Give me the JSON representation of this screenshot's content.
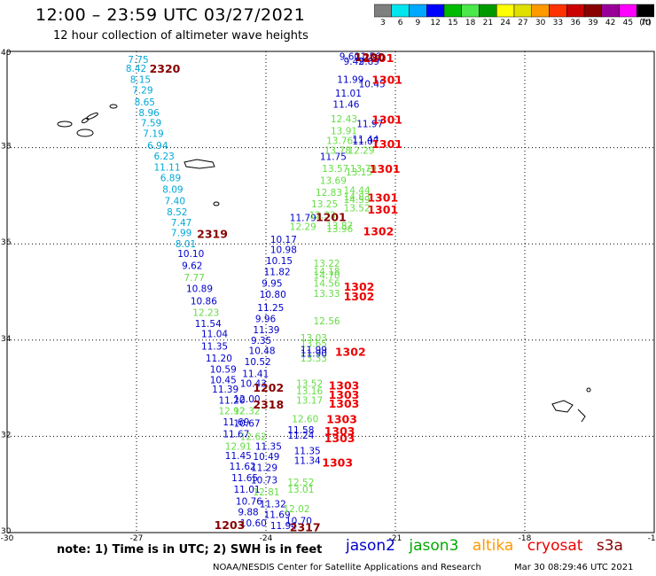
{
  "header": {
    "title": "12:00 – 23:59 UTC 03/27/2021",
    "subtitle": "12 hour collection of altimeter wave heights"
  },
  "color_scale": {
    "unit_label": "(ft)",
    "ticks": [
      "3",
      "6",
      "9",
      "12",
      "15",
      "18",
      "21",
      "24",
      "27",
      "30",
      "33",
      "36",
      "39",
      "42",
      "45",
      "70"
    ],
    "colors": [
      "#7f7f7f",
      "#00e5ee",
      "#00a8ff",
      "#0000ff",
      "#00bb00",
      "#4be84b",
      "#009900",
      "#ffff00",
      "#e0e000",
      "#ff9900",
      "#ff3300",
      "#cc0000",
      "#880000",
      "#990099",
      "#ff00ff",
      "#000000"
    ]
  },
  "axes": {
    "lat_labels": [
      "40",
      "38",
      "36",
      "34",
      "32",
      "30"
    ],
    "lon_labels": [
      "-30",
      "-27",
      "-24",
      "-21",
      "-18",
      "-15"
    ]
  },
  "footer": {
    "note": "note:  1) Time is in UTC;  2) SWH is in feet",
    "credit_org": "NOAA/NESDIS Center for Satellite Applications and Research",
    "credit_time": "Mar 30 08:29:46 UTC 2021"
  },
  "legend": [
    {
      "name": "jason2",
      "color": "#0000cc"
    },
    {
      "name": "jason3",
      "color": "#00aa00"
    },
    {
      "name": "altika",
      "color": "#ff9900"
    },
    {
      "name": "cryosat",
      "color": "#ee0000"
    },
    {
      "name": "s3a",
      "color": "#880000"
    }
  ],
  "track_colors": {
    "cyan": "#00a8d8",
    "blue": "#0000cc",
    "green": "#66dd44",
    "red": "#ee0000",
    "dkred": "#880000"
  },
  "tracks": {
    "track_a": {
      "color": "cyan",
      "points": [
        {
          "lat": 39.83,
          "lon": -27.2,
          "v": "7.75"
        },
        {
          "lat": 39.65,
          "lon": -27.25,
          "v": "8.42"
        },
        {
          "lat": 39.42,
          "lon": -27.15,
          "v": "8.15"
        },
        {
          "lat": 39.2,
          "lon": -27.1,
          "v": "7.29"
        },
        {
          "lat": 38.95,
          "lon": -27.05,
          "v": "8.65"
        },
        {
          "lat": 38.73,
          "lon": -26.95,
          "v": "8.96"
        },
        {
          "lat": 38.52,
          "lon": -26.9,
          "v": "7.59"
        },
        {
          "lat": 38.3,
          "lon": -26.85,
          "v": "7.19"
        },
        {
          "lat": 38.05,
          "lon": -26.75,
          "v": "6.94"
        },
        {
          "lat": 37.83,
          "lon": -26.6,
          "v": "6.23"
        },
        {
          "lat": 37.6,
          "lon": -26.6,
          "v": "11.11"
        },
        {
          "lat": 37.38,
          "lon": -26.45,
          "v": "6.89"
        },
        {
          "lat": 37.14,
          "lon": -26.4,
          "v": "8.09"
        },
        {
          "lat": 36.9,
          "lon": -26.35,
          "v": "7.40"
        },
        {
          "lat": 36.67,
          "lon": -26.3,
          "v": "8.52"
        },
        {
          "lat": 36.45,
          "lon": -26.2,
          "v": "7.47"
        },
        {
          "lat": 36.23,
          "lon": -26.2,
          "v": "7.99"
        },
        {
          "lat": 36.0,
          "lon": -26.1,
          "v": "8.01"
        }
      ]
    },
    "track_b": {
      "color": "blue",
      "points": [
        {
          "lat": 35.8,
          "lon": -26.05,
          "v": "10.10"
        },
        {
          "lat": 35.55,
          "lon": -25.95,
          "v": "9.62"
        },
        {
          "lat": 35.07,
          "lon": -25.85,
          "v": "10.89"
        },
        {
          "lat": 34.82,
          "lon": -25.75,
          "v": "10.86"
        },
        {
          "lat": 34.35,
          "lon": -25.65,
          "v": "11.54"
        },
        {
          "lat": 34.13,
          "lon": -25.5,
          "v": "11.04"
        },
        {
          "lat": 33.88,
          "lon": -25.5,
          "v": "11.35"
        },
        {
          "lat": 33.63,
          "lon": -25.4,
          "v": "11.20"
        },
        {
          "lat": 33.4,
          "lon": -25.3,
          "v": "10.59"
        },
        {
          "lat": 33.18,
          "lon": -25.3,
          "v": "10.45"
        },
        {
          "lat": 32.98,
          "lon": -25.25,
          "v": "11.39"
        },
        {
          "lat": 32.75,
          "lon": -25.1,
          "v": "11.20"
        },
        {
          "lat": 32.3,
          "lon": -25.0,
          "v": "11.69"
        },
        {
          "lat": 32.05,
          "lon": -25.0,
          "v": "11.67"
        },
        {
          "lat": 31.6,
          "lon": -24.95,
          "v": "11.45"
        },
        {
          "lat": 31.38,
          "lon": -24.85,
          "v": "11.62"
        },
        {
          "lat": 31.14,
          "lon": -24.8,
          "v": "11.65"
        },
        {
          "lat": 30.9,
          "lon": -24.75,
          "v": "11.01"
        },
        {
          "lat": 30.65,
          "lon": -24.7,
          "v": "10.76"
        },
        {
          "lat": 30.43,
          "lon": -24.65,
          "v": "9.88"
        },
        {
          "lat": 30.2,
          "lon": -24.6,
          "v": "10.60"
        }
      ]
    },
    "track_b2": {
      "color": "green",
      "points": [
        {
          "lat": 35.3,
          "lon": -25.9,
          "v": "7.77"
        },
        {
          "lat": 34.58,
          "lon": -25.7,
          "v": "12.23"
        },
        {
          "lat": 32.53,
          "lon": -25.1,
          "v": "12.92"
        },
        {
          "lat": 31.8,
          "lon": -24.95,
          "v": "12.91"
        }
      ]
    },
    "track_c": {
      "color": "blue",
      "points": [
        {
          "lat": 36.1,
          "lon": -23.9,
          "v": "10.17"
        },
        {
          "lat": 35.88,
          "lon": -23.9,
          "v": "10.98"
        },
        {
          "lat": 35.65,
          "lon": -24.0,
          "v": "10.15"
        },
        {
          "lat": 35.42,
          "lon": -24.05,
          "v": "11.82"
        },
        {
          "lat": 35.18,
          "lon": -24.1,
          "v": "9.95"
        },
        {
          "lat": 34.95,
          "lon": -24.15,
          "v": "10.80"
        },
        {
          "lat": 34.68,
          "lon": -24.2,
          "v": "11.25"
        },
        {
          "lat": 34.45,
          "lon": -24.25,
          "v": "9.96"
        },
        {
          "lat": 34.22,
          "lon": -24.3,
          "v": "11.39"
        },
        {
          "lat": 34.0,
          "lon": -24.35,
          "v": "9.35"
        },
        {
          "lat": 33.78,
          "lon": -24.4,
          "v": "10.48"
        },
        {
          "lat": 33.55,
          "lon": -24.5,
          "v": "10.52"
        },
        {
          "lat": 33.31,
          "lon": -24.55,
          "v": "11.41"
        },
        {
          "lat": 33.1,
          "lon": -24.6,
          "v": "10.43"
        },
        {
          "lat": 32.78,
          "lon": -24.75,
          "v": "12.00"
        },
        {
          "lat": 32.27,
          "lon": -24.75,
          "v": "10.67"
        },
        {
          "lat": 31.8,
          "lon": -24.25,
          "v": "11.35"
        },
        {
          "lat": 31.58,
          "lon": -24.3,
          "v": "10.49"
        },
        {
          "lat": 31.35,
          "lon": -24.35,
          "v": "11.29"
        },
        {
          "lat": 31.1,
          "lon": -24.35,
          "v": "10.73"
        },
        {
          "lat": 30.6,
          "lon": -24.15,
          "v": "11.32"
        },
        {
          "lat": 30.38,
          "lon": -24.05,
          "v": "11.69"
        },
        {
          "lat": 30.15,
          "lon": -23.9,
          "v": "11.94"
        },
        {
          "lat": 30.25,
          "lon": -23.55,
          "v": "10.70"
        }
      ]
    },
    "track_c2": {
      "color": "green",
      "points": [
        {
          "lat": 32.53,
          "lon": -24.75,
          "v": "12.32"
        },
        {
          "lat": 32.0,
          "lon": -24.6,
          "v": "12.62"
        },
        {
          "lat": 30.85,
          "lon": -24.3,
          "v": "12.81"
        },
        {
          "lat": 30.5,
          "lon": -23.6,
          "v": "12.02"
        }
      ]
    },
    "track_d": {
      "color": "blue",
      "points": [
        {
          "lat": 39.9,
          "lon": -22.3,
          "v": "9.60"
        },
        {
          "lat": 39.9,
          "lon": -21.95,
          "v": "11.56"
        },
        {
          "lat": 39.8,
          "lon": -22.2,
          "v": "9.42"
        },
        {
          "lat": 39.8,
          "lon": -21.85,
          "v": "9.89"
        },
        {
          "lat": 39.42,
          "lon": -22.35,
          "v": "11.99"
        },
        {
          "lat": 39.33,
          "lon": -21.85,
          "v": "10.45"
        },
        {
          "lat": 39.13,
          "lon": -22.4,
          "v": "11.01"
        },
        {
          "lat": 38.9,
          "lon": -22.45,
          "v": "11.46"
        },
        {
          "lat": 38.5,
          "lon": -21.9,
          "v": "11.97"
        },
        {
          "lat": 38.18,
          "lon": -22.0,
          "v": "11.44"
        },
        {
          "lat": 38.14,
          "lon": -22.0,
          "v": "11.07"
        },
        {
          "lat": 37.82,
          "lon": -22.75,
          "v": "11.75"
        },
        {
          "lat": 36.55,
          "lon": -23.45,
          "v": "11.79"
        }
      ]
    },
    "track_d2": {
      "color": "green",
      "points": [
        {
          "lat": 38.6,
          "lon": -22.5,
          "v": "12.43"
        },
        {
          "lat": 38.35,
          "lon": -22.5,
          "v": "13.91"
        },
        {
          "lat": 38.15,
          "lon": -22.6,
          "v": "13.76"
        },
        {
          "lat": 37.95,
          "lon": -22.65,
          "v": "13.78"
        },
        {
          "lat": 37.95,
          "lon": -22.1,
          "v": "12.29"
        },
        {
          "lat": 37.57,
          "lon": -22.7,
          "v": "13.57"
        },
        {
          "lat": 37.57,
          "lon": -22.05,
          "v": "13.79"
        },
        {
          "lat": 37.5,
          "lon": -22.15,
          "v": "13.15"
        },
        {
          "lat": 37.32,
          "lon": -22.75,
          "v": "13.69"
        },
        {
          "lat": 37.12,
          "lon": -22.2,
          "v": "14.44"
        },
        {
          "lat": 37.07,
          "lon": -22.85,
          "v": "12.83"
        },
        {
          "lat": 36.98,
          "lon": -22.2,
          "v": "14.83"
        },
        {
          "lat": 36.92,
          "lon": -22.2,
          "v": "14.59"
        },
        {
          "lat": 36.83,
          "lon": -22.95,
          "v": "13.25"
        },
        {
          "lat": 36.75,
          "lon": -22.2,
          "v": "13.52"
        },
        {
          "lat": 36.6,
          "lon": -23.0,
          "v": "12.33"
        },
        {
          "lat": 36.36,
          "lon": -23.45,
          "v": "12.29"
        },
        {
          "lat": 36.38,
          "lon": -22.6,
          "v": "13.87"
        },
        {
          "lat": 36.32,
          "lon": -22.6,
          "v": "13.96"
        }
      ]
    },
    "track_e": {
      "color": "green",
      "points": [
        {
          "lat": 35.6,
          "lon": -22.9,
          "v": "13.22"
        },
        {
          "lat": 35.43,
          "lon": -22.9,
          "v": "14.18"
        },
        {
          "lat": 35.35,
          "lon": -22.9,
          "v": "14.70"
        },
        {
          "lat": 35.18,
          "lon": -22.9,
          "v": "14.56"
        },
        {
          "lat": 34.97,
          "lon": -22.9,
          "v": "13.33"
        },
        {
          "lat": 34.4,
          "lon": -22.9,
          "v": "12.56"
        },
        {
          "lat": 34.05,
          "lon": -23.2,
          "v": "13.03"
        },
        {
          "lat": 33.93,
          "lon": -23.2,
          "v": "13.65"
        },
        {
          "lat": 33.63,
          "lon": -23.2,
          "v": "13.33"
        },
        {
          "lat": 33.1,
          "lon": -23.3,
          "v": "13.52"
        },
        {
          "lat": 32.95,
          "lon": -23.3,
          "v": "13.16"
        },
        {
          "lat": 32.75,
          "lon": -23.3,
          "v": "13.17"
        },
        {
          "lat": 32.37,
          "lon": -23.4,
          "v": "12.60"
        },
        {
          "lat": 30.9,
          "lon": -23.5,
          "v": "13.01"
        },
        {
          "lat": 31.05,
          "lon": -23.5,
          "v": "12.52"
        }
      ]
    },
    "track_e2": {
      "color": "blue",
      "points": [
        {
          "lat": 33.8,
          "lon": -23.2,
          "v": "11.99"
        },
        {
          "lat": 33.73,
          "lon": -23.2,
          "v": "11.90"
        },
        {
          "lat": 32.14,
          "lon": -23.5,
          "v": "11.58"
        },
        {
          "lat": 32.03,
          "lon": -23.5,
          "v": "11.24"
        },
        {
          "lat": 31.7,
          "lon": -23.35,
          "v": "11.35"
        },
        {
          "lat": 31.5,
          "lon": -23.35,
          "v": "11.34"
        }
      ]
    },
    "cryosat_times": {
      "color": "red",
      "points": [
        {
          "lat": 39.85,
          "lon": -21.75,
          "v": "1301"
        },
        {
          "lat": 39.4,
          "lon": -21.55,
          "v": "1301"
        },
        {
          "lat": 38.57,
          "lon": -21.55,
          "v": "1301"
        },
        {
          "lat": 38.07,
          "lon": -21.55,
          "v": "1301"
        },
        {
          "lat": 37.55,
          "lon": -21.6,
          "v": "1301"
        },
        {
          "lat": 36.95,
          "lon": -21.65,
          "v": "1301"
        },
        {
          "lat": 36.7,
          "lon": -21.65,
          "v": "1301"
        },
        {
          "lat": 36.25,
          "lon": -21.75,
          "v": "1302"
        },
        {
          "lat": 35.1,
          "lon": -22.2,
          "v": "1302"
        },
        {
          "lat": 34.9,
          "lon": -22.2,
          "v": "1302"
        },
        {
          "lat": 33.75,
          "lon": -22.4,
          "v": "1302"
        },
        {
          "lat": 33.05,
          "lon": -22.55,
          "v": "1303"
        },
        {
          "lat": 32.85,
          "lon": -22.55,
          "v": "1303"
        },
        {
          "lat": 32.67,
          "lon": -22.55,
          "v": "1303"
        },
        {
          "lat": 32.35,
          "lon": -22.6,
          "v": "1303"
        },
        {
          "lat": 32.1,
          "lon": -22.65,
          "v": "1303"
        },
        {
          "lat": 31.95,
          "lon": -22.65,
          "v": "1303"
        },
        {
          "lat": 31.45,
          "lon": -22.7,
          "v": "1303"
        }
      ]
    },
    "s3a_times": {
      "color": "dkred",
      "points": [
        {
          "lat": 39.63,
          "lon": -26.7,
          "v": "2320"
        },
        {
          "lat": 39.87,
          "lon": -21.95,
          "v": "1200"
        },
        {
          "lat": 36.55,
          "lon": -22.85,
          "v": "1201"
        },
        {
          "lat": 36.2,
          "lon": -25.6,
          "v": "2319"
        },
        {
          "lat": 33.0,
          "lon": -24.3,
          "v": "1202"
        },
        {
          "lat": 32.65,
          "lon": -24.3,
          "v": "2318"
        },
        {
          "lat": 30.15,
          "lon": -25.2,
          "v": "1203"
        },
        {
          "lat": 30.1,
          "lon": -23.45,
          "v": "2317"
        }
      ]
    }
  }
}
